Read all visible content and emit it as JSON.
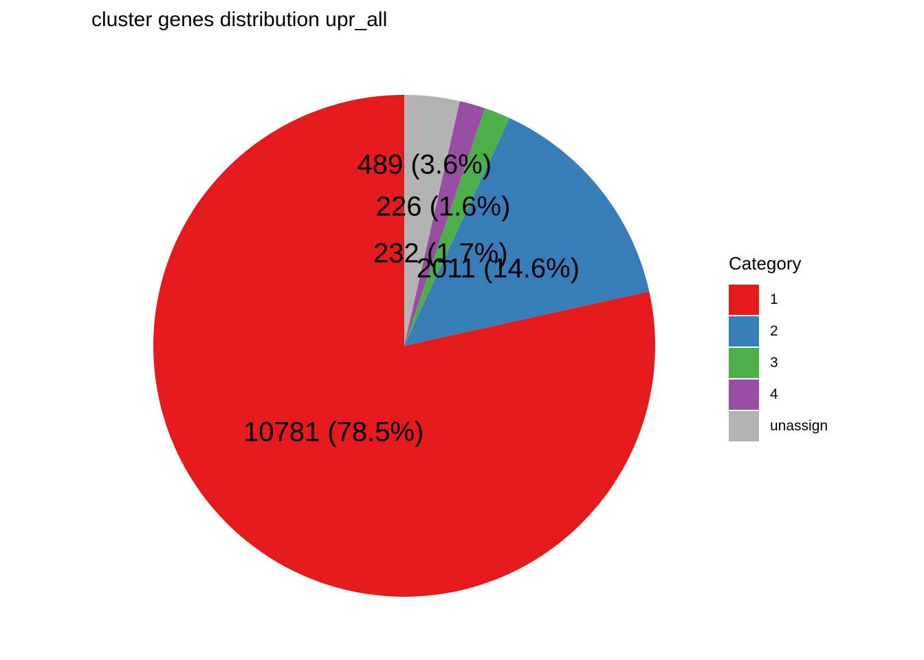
{
  "chart_data": {
    "type": "pie",
    "title": "cluster genes distribution upr_all",
    "legend_title": "Category",
    "legend_position": "right",
    "slices": [
      {
        "category": "unassign",
        "value": 489,
        "percent": 3.6,
        "label": "489 (3.6%)",
        "color": "#B3B3B3"
      },
      {
        "category": "4",
        "value": 226,
        "percent": 1.6,
        "label": "226 (1.6%)",
        "color": "#984EA3"
      },
      {
        "category": "3",
        "value": 232,
        "percent": 1.7,
        "label": "232 (1.7%)",
        "color": "#4DAF4A"
      },
      {
        "category": "2",
        "value": 2011,
        "percent": 14.6,
        "label": "2011 (14.6%)",
        "color": "#377EB8"
      },
      {
        "category": "1",
        "value": 10781,
        "percent": 78.5,
        "label": "10781 (78.5%)",
        "color": "#E41A1C"
      }
    ],
    "legend": [
      {
        "label": "1",
        "color": "#E41A1C"
      },
      {
        "label": "2",
        "color": "#377EB8"
      },
      {
        "label": "3",
        "color": "#4DAF4A"
      },
      {
        "label": "4",
        "color": "#984EA3"
      },
      {
        "label": "unassign",
        "color": "#B3B3B3"
      }
    ]
  }
}
